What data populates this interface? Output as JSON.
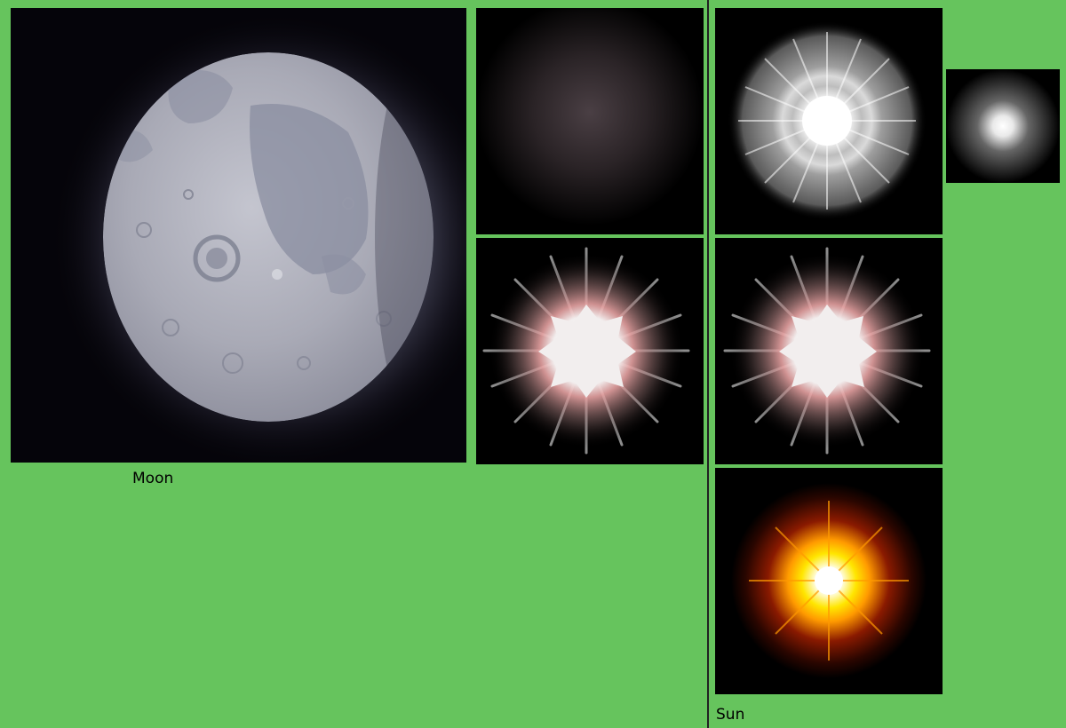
{
  "sections": {
    "moon": {
      "label": "Moon"
    },
    "sun": {
      "label": "Sun"
    }
  },
  "sprites": [
    {
      "name": "moon-sprite",
      "icon": "moon-icon"
    },
    {
      "name": "moon-halo-sprite",
      "icon": "halo-icon"
    },
    {
      "name": "moon-starburst-sprite",
      "icon": "starburst-icon"
    },
    {
      "name": "sun-rays-sprite",
      "icon": "sun-rays-icon"
    },
    {
      "name": "sun-starburst-sprite",
      "icon": "starburst-icon"
    },
    {
      "name": "sun-glow-sprite",
      "icon": "sun-glow-icon"
    },
    {
      "name": "small-glow-sprite",
      "icon": "glow-dot-icon"
    }
  ],
  "colors": {
    "background": "#66c45d",
    "tile": "#000000",
    "moon_surface": "#a7a9b6",
    "moon_maria": "#7e8296",
    "halo_tint": "#4a3f44",
    "burst_core": "#f2eeee",
    "burst_pink": "#e7a2a2",
    "sun_core": "#ffffff",
    "sun_yellow": "#ffe600",
    "sun_orange": "#ff7a00",
    "sun_red": "#8a1a00"
  }
}
